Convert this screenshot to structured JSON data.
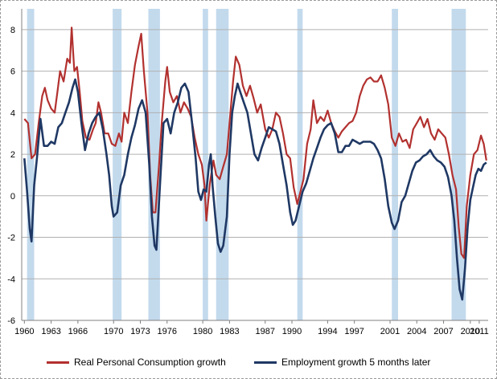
{
  "chart_data": {
    "type": "line",
    "xlim": [
      1959.7,
      2012.0
    ],
    "ylim": [
      -6,
      9
    ],
    "y_ticks": [
      "-6",
      "-4",
      "-2",
      "0",
      "2",
      "4",
      "6",
      "8"
    ],
    "x_ticks": [
      "1960",
      "1963",
      "1966",
      "1970",
      "1973",
      "1976",
      "1980",
      "1983",
      "1987",
      "1990",
      "1994",
      "1997",
      "2001",
      "2004",
      "2007",
      "2010",
      "2011"
    ],
    "grid": "horizontal",
    "legend_position": "bottom",
    "recession_bands": [
      [
        1960.3,
        1961.1
      ],
      [
        1969.9,
        1970.9
      ],
      [
        1973.9,
        1975.2
      ],
      [
        1980.0,
        1980.6
      ],
      [
        1981.5,
        1982.9
      ],
      [
        1990.6,
        1991.2
      ],
      [
        2001.2,
        2001.9
      ],
      [
        2007.9,
        2009.5
      ]
    ],
    "series": [
      {
        "name": "Real Personal Consumption growth",
        "color": "#b2312f",
        "points": [
          [
            1960.0,
            3.7
          ],
          [
            1960.4,
            3.5
          ],
          [
            1960.8,
            1.8
          ],
          [
            1961.2,
            2.0
          ],
          [
            1961.6,
            3.5
          ],
          [
            1962.0,
            4.8
          ],
          [
            1962.3,
            5.2
          ],
          [
            1962.6,
            4.6
          ],
          [
            1963.0,
            4.2
          ],
          [
            1963.4,
            4.0
          ],
          [
            1963.7,
            5.0
          ],
          [
            1964.0,
            6.0
          ],
          [
            1964.4,
            5.5
          ],
          [
            1964.8,
            6.6
          ],
          [
            1965.1,
            6.4
          ],
          [
            1965.3,
            8.1
          ],
          [
            1965.6,
            6.0
          ],
          [
            1965.9,
            6.2
          ],
          [
            1966.2,
            5.0
          ],
          [
            1966.5,
            3.6
          ],
          [
            1966.9,
            2.8
          ],
          [
            1967.3,
            2.7
          ],
          [
            1967.7,
            3.2
          ],
          [
            1968.0,
            3.5
          ],
          [
            1968.3,
            4.5
          ],
          [
            1968.6,
            4.0
          ],
          [
            1969.0,
            3.0
          ],
          [
            1969.4,
            3.0
          ],
          [
            1969.8,
            2.5
          ],
          [
            1970.2,
            2.4
          ],
          [
            1970.6,
            3.0
          ],
          [
            1970.9,
            2.6
          ],
          [
            1971.2,
            4.0
          ],
          [
            1971.6,
            3.5
          ],
          [
            1972.0,
            5.0
          ],
          [
            1972.4,
            6.3
          ],
          [
            1972.8,
            7.2
          ],
          [
            1973.1,
            7.8
          ],
          [
            1973.4,
            6.0
          ],
          [
            1973.8,
            4.0
          ],
          [
            1974.1,
            1.0
          ],
          [
            1974.4,
            -0.8
          ],
          [
            1974.7,
            -0.8
          ],
          [
            1975.1,
            1.5
          ],
          [
            1975.4,
            3.5
          ],
          [
            1975.8,
            5.5
          ],
          [
            1976.0,
            6.2
          ],
          [
            1976.3,
            5.0
          ],
          [
            1976.7,
            4.5
          ],
          [
            1977.1,
            4.8
          ],
          [
            1977.5,
            4.0
          ],
          [
            1977.9,
            4.5
          ],
          [
            1978.3,
            4.2
          ],
          [
            1978.7,
            3.8
          ],
          [
            1979.1,
            2.8
          ],
          [
            1979.5,
            2.0
          ],
          [
            1979.9,
            1.5
          ],
          [
            1980.2,
            0.5
          ],
          [
            1980.4,
            -1.2
          ],
          [
            1980.8,
            0.6
          ],
          [
            1981.2,
            1.7
          ],
          [
            1981.5,
            1.0
          ],
          [
            1981.9,
            0.8
          ],
          [
            1982.3,
            1.4
          ],
          [
            1982.7,
            2.0
          ],
          [
            1983.0,
            3.5
          ],
          [
            1983.4,
            5.5
          ],
          [
            1983.7,
            6.7
          ],
          [
            1984.1,
            6.3
          ],
          [
            1984.5,
            5.3
          ],
          [
            1984.9,
            4.8
          ],
          [
            1985.3,
            5.3
          ],
          [
            1985.7,
            4.7
          ],
          [
            1986.1,
            4.0
          ],
          [
            1986.5,
            4.4
          ],
          [
            1987.0,
            3.2
          ],
          [
            1987.4,
            2.8
          ],
          [
            1987.8,
            3.2
          ],
          [
            1988.2,
            4.0
          ],
          [
            1988.6,
            3.8
          ],
          [
            1989.0,
            3.0
          ],
          [
            1989.4,
            2.0
          ],
          [
            1989.8,
            1.8
          ],
          [
            1990.2,
            0.4
          ],
          [
            1990.6,
            -0.4
          ],
          [
            1990.9,
            0.1
          ],
          [
            1991.3,
            0.8
          ],
          [
            1991.7,
            2.5
          ],
          [
            1992.1,
            3.2
          ],
          [
            1992.4,
            4.6
          ],
          [
            1992.8,
            3.5
          ],
          [
            1993.2,
            3.8
          ],
          [
            1993.6,
            3.6
          ],
          [
            1994.0,
            4.1
          ],
          [
            1994.4,
            3.5
          ],
          [
            1994.8,
            3.1
          ],
          [
            1995.2,
            2.8
          ],
          [
            1995.6,
            3.1
          ],
          [
            1996.0,
            3.3
          ],
          [
            1996.4,
            3.5
          ],
          [
            1996.8,
            3.6
          ],
          [
            1997.2,
            4.0
          ],
          [
            1997.6,
            4.8
          ],
          [
            1998.0,
            5.3
          ],
          [
            1998.4,
            5.6
          ],
          [
            1998.8,
            5.7
          ],
          [
            1999.2,
            5.5
          ],
          [
            1999.6,
            5.5
          ],
          [
            2000.0,
            5.8
          ],
          [
            2000.4,
            5.2
          ],
          [
            2000.8,
            4.4
          ],
          [
            2001.2,
            2.8
          ],
          [
            2001.6,
            2.4
          ],
          [
            2002.0,
            3.0
          ],
          [
            2002.4,
            2.6
          ],
          [
            2002.8,
            2.7
          ],
          [
            2003.2,
            2.3
          ],
          [
            2003.6,
            3.2
          ],
          [
            2004.0,
            3.5
          ],
          [
            2004.4,
            3.8
          ],
          [
            2004.8,
            3.3
          ],
          [
            2005.2,
            3.7
          ],
          [
            2005.6,
            3.0
          ],
          [
            2006.0,
            2.7
          ],
          [
            2006.4,
            3.2
          ],
          [
            2006.8,
            3.0
          ],
          [
            2007.2,
            2.8
          ],
          [
            2007.6,
            2.0
          ],
          [
            2008.0,
            1.0
          ],
          [
            2008.4,
            0.3
          ],
          [
            2008.7,
            -1.5
          ],
          [
            2009.0,
            -2.8
          ],
          [
            2009.3,
            -3.0
          ],
          [
            2009.6,
            -0.5
          ],
          [
            2010.0,
            1.0
          ],
          [
            2010.4,
            2.0
          ],
          [
            2010.8,
            2.2
          ],
          [
            2011.2,
            2.9
          ],
          [
            2011.5,
            2.5
          ],
          [
            2011.8,
            1.7
          ]
        ]
      },
      {
        "name": "Employment growth 5 months later",
        "color": "#1f3864",
        "points": [
          [
            1960.0,
            1.8
          ],
          [
            1960.3,
            0.2
          ],
          [
            1960.6,
            -1.6
          ],
          [
            1960.8,
            -2.2
          ],
          [
            1961.1,
            0.5
          ],
          [
            1961.4,
            1.8
          ],
          [
            1961.8,
            3.7
          ],
          [
            1962.2,
            2.4
          ],
          [
            1962.6,
            2.4
          ],
          [
            1963.0,
            2.6
          ],
          [
            1963.4,
            2.5
          ],
          [
            1963.8,
            3.3
          ],
          [
            1964.2,
            3.5
          ],
          [
            1964.6,
            4.0
          ],
          [
            1965.0,
            4.5
          ],
          [
            1965.4,
            5.2
          ],
          [
            1965.7,
            5.6
          ],
          [
            1966.0,
            5.0
          ],
          [
            1966.4,
            3.5
          ],
          [
            1966.8,
            2.2
          ],
          [
            1967.2,
            3.0
          ],
          [
            1967.6,
            3.5
          ],
          [
            1968.0,
            3.8
          ],
          [
            1968.4,
            4.0
          ],
          [
            1968.8,
            3.2
          ],
          [
            1969.2,
            2.0
          ],
          [
            1969.5,
            1.0
          ],
          [
            1969.8,
            -0.5
          ],
          [
            1970.0,
            -1.0
          ],
          [
            1970.4,
            -0.8
          ],
          [
            1970.8,
            0.5
          ],
          [
            1971.2,
            1.0
          ],
          [
            1971.6,
            2.0
          ],
          [
            1972.0,
            2.8
          ],
          [
            1972.4,
            3.4
          ],
          [
            1972.8,
            4.2
          ],
          [
            1973.2,
            4.6
          ],
          [
            1973.6,
            4.0
          ],
          [
            1974.0,
            1.5
          ],
          [
            1974.3,
            -1.0
          ],
          [
            1974.6,
            -2.4
          ],
          [
            1974.8,
            -2.6
          ],
          [
            1975.2,
            0.5
          ],
          [
            1975.6,
            3.5
          ],
          [
            1976.0,
            3.7
          ],
          [
            1976.4,
            3.0
          ],
          [
            1976.8,
            4.0
          ],
          [
            1977.2,
            4.5
          ],
          [
            1977.6,
            5.2
          ],
          [
            1978.0,
            5.4
          ],
          [
            1978.4,
            5.0
          ],
          [
            1978.8,
            3.5
          ],
          [
            1979.2,
            1.8
          ],
          [
            1979.5,
            0.2
          ],
          [
            1979.8,
            -0.2
          ],
          [
            1980.1,
            0.3
          ],
          [
            1980.4,
            0.2
          ],
          [
            1980.7,
            1.5
          ],
          [
            1980.9,
            2.0
          ],
          [
            1981.1,
            0.5
          ],
          [
            1981.4,
            -1.0
          ],
          [
            1981.7,
            -2.3
          ],
          [
            1982.0,
            -2.7
          ],
          [
            1982.3,
            -2.4
          ],
          [
            1982.7,
            -1.0
          ],
          [
            1983.0,
            2.0
          ],
          [
            1983.3,
            4.0
          ],
          [
            1983.6,
            4.8
          ],
          [
            1983.9,
            5.4
          ],
          [
            1984.2,
            5.0
          ],
          [
            1984.6,
            4.5
          ],
          [
            1985.0,
            4.0
          ],
          [
            1985.4,
            3.0
          ],
          [
            1985.8,
            2.0
          ],
          [
            1986.2,
            1.7
          ],
          [
            1986.6,
            2.3
          ],
          [
            1987.0,
            2.8
          ],
          [
            1987.4,
            3.3
          ],
          [
            1987.8,
            3.2
          ],
          [
            1988.2,
            3.1
          ],
          [
            1988.6,
            2.5
          ],
          [
            1989.0,
            1.5
          ],
          [
            1989.4,
            0.5
          ],
          [
            1989.8,
            -0.8
          ],
          [
            1990.1,
            -1.4
          ],
          [
            1990.4,
            -1.2
          ],
          [
            1990.8,
            -0.5
          ],
          [
            1991.2,
            0.2
          ],
          [
            1991.6,
            0.6
          ],
          [
            1992.0,
            1.2
          ],
          [
            1992.4,
            1.8
          ],
          [
            1992.8,
            2.3
          ],
          [
            1993.2,
            2.8
          ],
          [
            1993.6,
            3.2
          ],
          [
            1994.0,
            3.4
          ],
          [
            1994.4,
            3.5
          ],
          [
            1994.8,
            3.0
          ],
          [
            1995.2,
            2.1
          ],
          [
            1995.6,
            2.1
          ],
          [
            1996.0,
            2.4
          ],
          [
            1996.4,
            2.4
          ],
          [
            1996.8,
            2.7
          ],
          [
            1997.2,
            2.6
          ],
          [
            1997.6,
            2.5
          ],
          [
            1998.0,
            2.6
          ],
          [
            1998.4,
            2.6
          ],
          [
            1998.8,
            2.6
          ],
          [
            1999.2,
            2.5
          ],
          [
            1999.6,
            2.2
          ],
          [
            2000.0,
            1.8
          ],
          [
            2000.4,
            0.8
          ],
          [
            2000.8,
            -0.5
          ],
          [
            2001.2,
            -1.3
          ],
          [
            2001.5,
            -1.6
          ],
          [
            2001.9,
            -1.2
          ],
          [
            2002.3,
            -0.3
          ],
          [
            2002.7,
            0.0
          ],
          [
            2003.1,
            0.6
          ],
          [
            2003.5,
            1.2
          ],
          [
            2003.9,
            1.6
          ],
          [
            2004.3,
            1.7
          ],
          [
            2004.7,
            1.9
          ],
          [
            2005.1,
            2.0
          ],
          [
            2005.5,
            2.2
          ],
          [
            2005.9,
            1.9
          ],
          [
            2006.3,
            1.7
          ],
          [
            2006.7,
            1.6
          ],
          [
            2007.1,
            1.4
          ],
          [
            2007.5,
            0.9
          ],
          [
            2007.9,
            0.0
          ],
          [
            2008.2,
            -1.2
          ],
          [
            2008.5,
            -3.0
          ],
          [
            2008.8,
            -4.5
          ],
          [
            2009.1,
            -5.0
          ],
          [
            2009.4,
            -3.5
          ],
          [
            2009.7,
            -1.5
          ],
          [
            2010.0,
            -0.2
          ],
          [
            2010.3,
            0.4
          ],
          [
            2010.6,
            1.0
          ],
          [
            2010.9,
            1.3
          ],
          [
            2011.2,
            1.2
          ],
          [
            2011.5,
            1.5
          ],
          [
            2011.8,
            1.6
          ]
        ]
      }
    ]
  }
}
